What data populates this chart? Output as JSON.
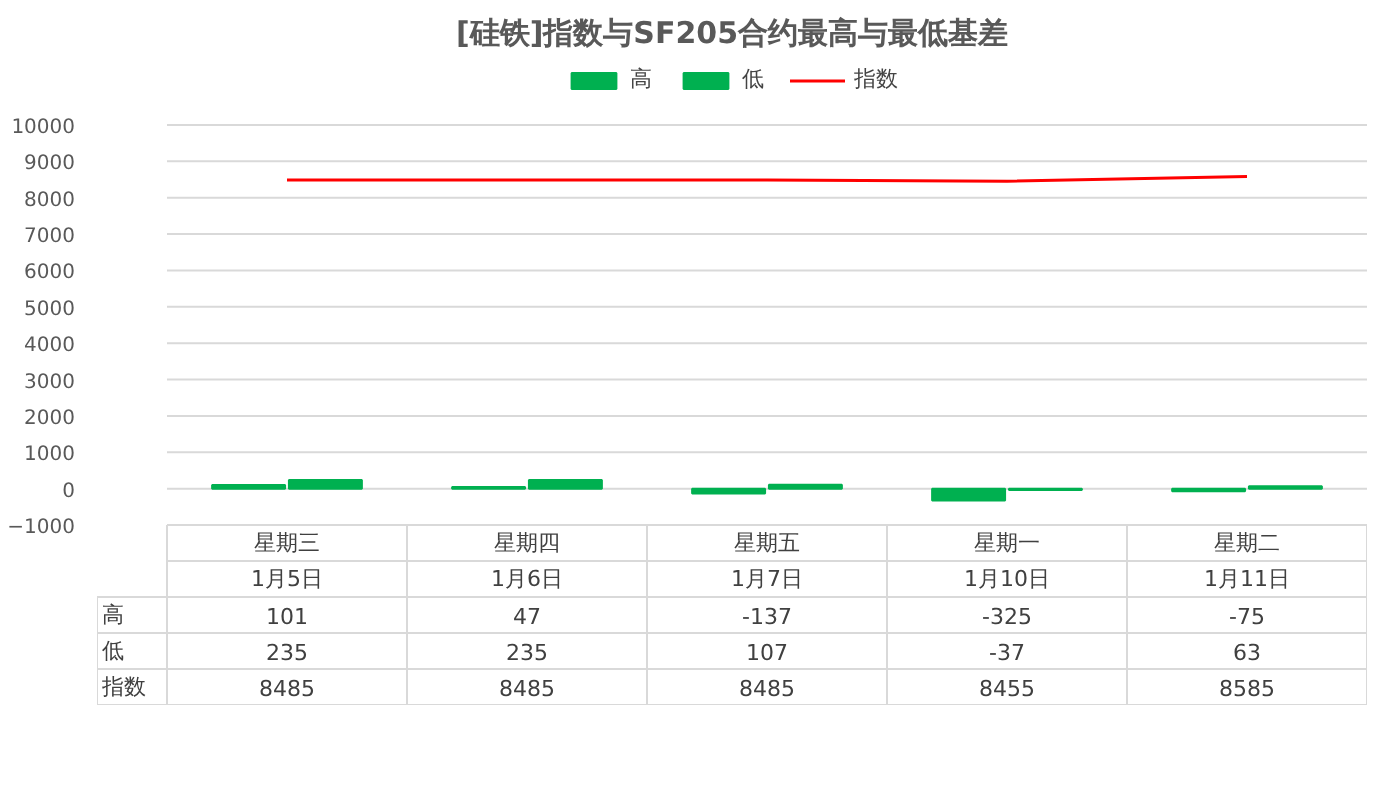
{
  "chart_data": {
    "type": "bar",
    "title": "[硅铁]指数与SF205合约最高与最低基差",
    "categories": [
      "星期三\n1月5日",
      "星期四\n1月6日",
      "星期五\n1月7日",
      "星期一\n1月10日",
      "星期二\n1月11日"
    ],
    "series": [
      {
        "name": "高",
        "color": "#00b050",
        "values": [
          101,
          47,
          -137,
          -325,
          -75
        ]
      },
      {
        "name": "低",
        "color": "#00b050",
        "values": [
          235,
          235,
          107,
          -37,
          63
        ]
      },
      {
        "name": "指数",
        "type": "line",
        "color": "#ff0000",
        "values": [
          8485,
          8485,
          8485,
          8455,
          8585
        ]
      }
    ],
    "ylim": [
      -1000,
      10000
    ],
    "yticks": [
      -1000,
      0,
      1000,
      2000,
      3000,
      4000,
      5000,
      6000,
      7000,
      8000,
      9000,
      10000
    ],
    "grid": "y",
    "legend": "top",
    "data_labels": true
  }
}
